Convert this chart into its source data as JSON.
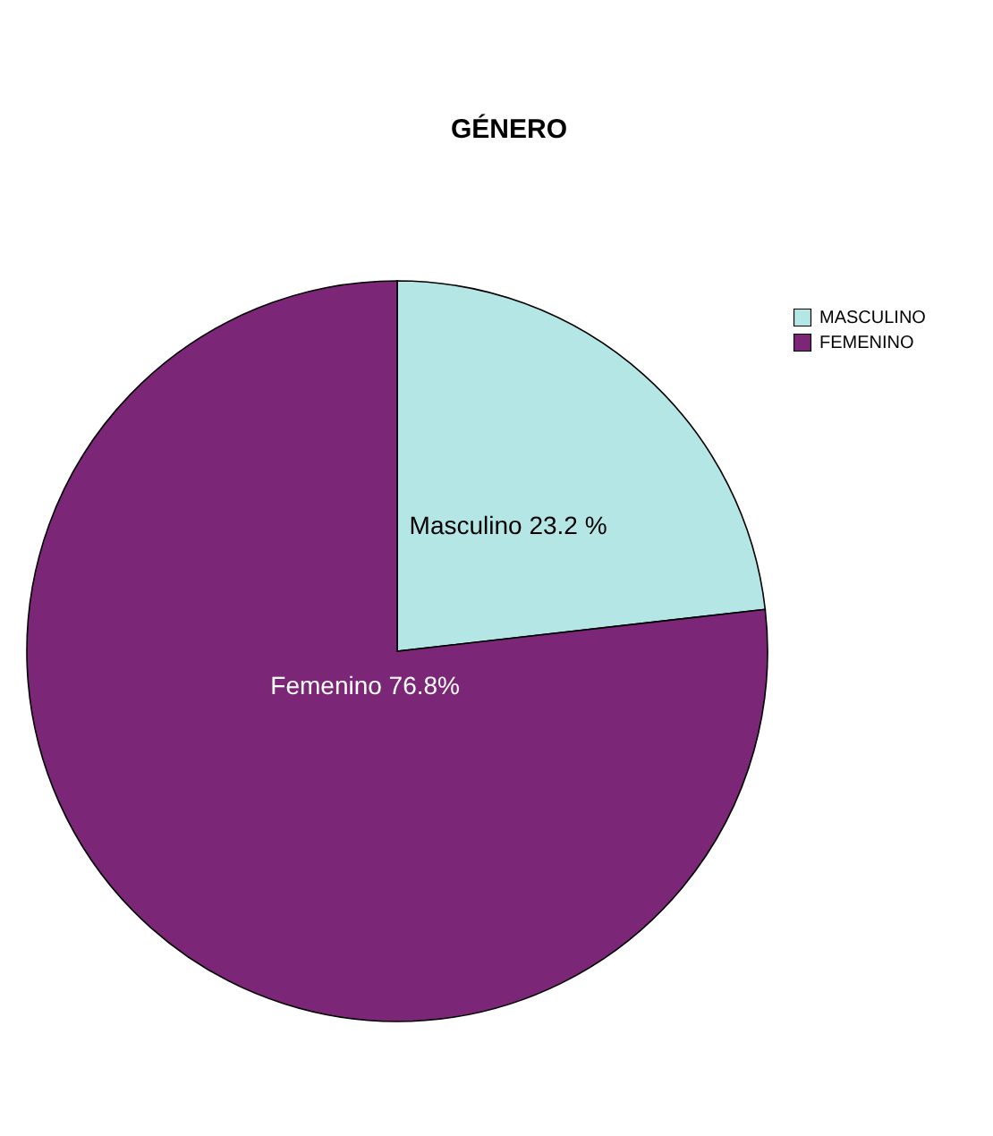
{
  "chart_data": {
    "type": "pie",
    "title": "GÉNERO",
    "categories": [
      "MASCULINO",
      "FEMENINO"
    ],
    "values": [
      23.2,
      76.8
    ],
    "colors": [
      "#b4e6e6",
      "#7b2677"
    ],
    "value_labels": [
      "Masculino 23.2 %",
      "Femenino 76.8%"
    ],
    "legend": "top right"
  }
}
